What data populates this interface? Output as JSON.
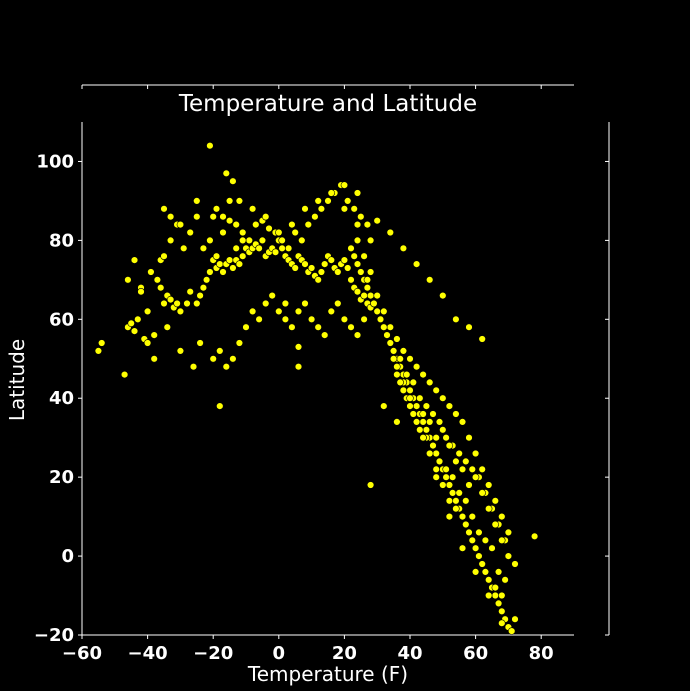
{
  "colors": {
    "background": "#000000",
    "foreground": "#ffffff",
    "point_fill": "#ffff00",
    "point_edge": "#000000"
  },
  "chart_data": {
    "type": "scatter",
    "title": "Temperature and Latitude",
    "xlabel": "Temperature (F)",
    "ylabel": "Latitude",
    "xlim": [
      -60,
      90
    ],
    "ylim": [
      -20,
      110
    ],
    "xticks": [
      -60,
      -40,
      -20,
      0,
      20,
      40,
      60,
      80
    ],
    "yticks": [
      -20,
      0,
      20,
      40,
      60,
      80,
      100
    ],
    "xtick_labels": [
      "−60",
      "−40",
      "−20",
      "0",
      "20",
      "40",
      "60",
      "80"
    ],
    "ytick_labels": [
      "−20",
      "0",
      "20",
      "40",
      "60",
      "80",
      "100"
    ],
    "grid": false,
    "series": [
      {
        "x": [
          -55,
          -54,
          -47,
          -46,
          -45,
          -44,
          -42,
          -41,
          -40,
          -38,
          -37,
          -36,
          -35,
          -34,
          -33,
          -32,
          -31,
          -30,
          -28,
          -27,
          -25,
          -24,
          -23,
          -22,
          -21,
          -20,
          -19,
          -18,
          -17,
          -16,
          -15,
          -14,
          -13,
          -12,
          -11,
          -10,
          -9,
          -8,
          -7,
          -6,
          -5,
          -4,
          -3,
          -2,
          -1,
          0,
          1,
          2,
          3,
          4,
          5,
          6,
          7,
          8,
          9,
          10,
          11,
          12,
          13,
          14,
          15,
          16,
          17,
          18,
          19,
          20,
          21,
          22,
          23,
          24,
          25,
          26,
          27,
          28,
          -46,
          -44,
          -42,
          -39,
          -36,
          -35,
          -33,
          -31,
          -29,
          -27,
          -25,
          -23,
          -21,
          -19,
          -17,
          -15,
          -13,
          -11,
          -9,
          -7,
          -5,
          -3,
          -1,
          1,
          3,
          5,
          7,
          9,
          11,
          13,
          15,
          17,
          19,
          21,
          23,
          25,
          27,
          -43,
          -40,
          -38,
          -34,
          -30,
          -26,
          -24,
          -20,
          -18,
          -16,
          -14,
          -12,
          -10,
          -8,
          -6,
          -4,
          -2,
          0,
          2,
          4,
          6,
          8,
          10,
          12,
          14,
          16,
          18,
          20,
          22,
          24,
          26,
          -21,
          -16,
          -14,
          -19,
          -17,
          -15,
          -13,
          -11,
          -35,
          -33,
          -30,
          -25,
          -20,
          -12,
          -8,
          -4,
          0,
          4,
          8,
          12,
          16,
          20,
          24,
          -18,
          6,
          6,
          2,
          22,
          23,
          24,
          25,
          26,
          27,
          28,
          29,
          30,
          31,
          32,
          33,
          34,
          35,
          36,
          37,
          38,
          39,
          40,
          41,
          42,
          43,
          44,
          45,
          46,
          47,
          48,
          49,
          50,
          51,
          52,
          53,
          54,
          55,
          56,
          57,
          58,
          59,
          60,
          61,
          62,
          63,
          64,
          65,
          66,
          67,
          68,
          69,
          70,
          71,
          24,
          26,
          28,
          30,
          32,
          34,
          36,
          38,
          40,
          42,
          44,
          46,
          48,
          50,
          52,
          54,
          56,
          58,
          60,
          62,
          64,
          66,
          68,
          70,
          27,
          29,
          31,
          33,
          35,
          37,
          39,
          41,
          43,
          45,
          47,
          49,
          51,
          53,
          55,
          57,
          59,
          61,
          63,
          65,
          67,
          69,
          30,
          32,
          34,
          36,
          38,
          40,
          42,
          44,
          46,
          48,
          50,
          52,
          54,
          56,
          58,
          60,
          62,
          64,
          66,
          68,
          70,
          72,
          33,
          35,
          37,
          39,
          41,
          43,
          45,
          47,
          49,
          51,
          53,
          55,
          57,
          59,
          61,
          63,
          65,
          67,
          69,
          36,
          38,
          40,
          42,
          44,
          46,
          48,
          50,
          52,
          54,
          56,
          58,
          60,
          62,
          64,
          66,
          68,
          28,
          32,
          36,
          40,
          44,
          48,
          52,
          56,
          60,
          64,
          68,
          72,
          78,
          20,
          24,
          28,
          30,
          34,
          38,
          42,
          46,
          50,
          54,
          58,
          62
        ],
        "y": [
          52,
          54,
          46,
          58,
          59,
          57,
          68,
          55,
          62,
          50,
          70,
          68,
          64,
          66,
          65,
          63,
          64,
          62,
          64,
          67,
          64,
          66,
          68,
          70,
          72,
          75,
          73,
          74,
          72,
          74,
          75,
          73,
          75,
          74,
          76,
          78,
          77,
          78,
          79,
          78,
          80,
          76,
          77,
          78,
          77,
          80,
          78,
          76,
          75,
          74,
          73,
          76,
          75,
          74,
          72,
          73,
          71,
          70,
          72,
          74,
          76,
          75,
          73,
          72,
          74,
          75,
          73,
          70,
          68,
          67,
          65,
          66,
          64,
          63,
          70,
          75,
          67,
          72,
          75,
          76,
          80,
          84,
          78,
          82,
          86,
          78,
          80,
          76,
          82,
          85,
          78,
          82,
          80,
          84,
          85,
          83,
          82,
          80,
          78,
          82,
          80,
          84,
          86,
          88,
          90,
          92,
          94,
          90,
          88,
          86,
          84,
          60,
          54,
          56,
          58,
          52,
          48,
          54,
          50,
          52,
          48,
          50,
          54,
          58,
          62,
          60,
          64,
          66,
          62,
          60,
          58,
          62,
          64,
          60,
          58,
          56,
          62,
          64,
          60,
          58,
          56,
          60,
          104,
          97,
          95,
          88,
          86,
          90,
          84,
          80,
          88,
          86,
          84,
          90,
          86,
          90,
          88,
          86,
          82,
          84,
          88,
          90,
          92,
          94,
          92,
          38,
          48,
          53,
          64,
          78,
          76,
          74,
          72,
          70,
          68,
          66,
          64,
          62,
          60,
          58,
          56,
          54,
          52,
          50,
          48,
          46,
          44,
          42,
          40,
          38,
          36,
          34,
          32,
          30,
          28,
          26,
          24,
          22,
          20,
          18,
          16,
          14,
          12,
          10,
          8,
          6,
          4,
          2,
          0,
          -2,
          -4,
          -6,
          -8,
          -10,
          -12,
          -14,
          -16,
          -18,
          -19,
          80,
          76,
          72,
          66,
          62,
          58,
          55,
          52,
          50,
          48,
          46,
          44,
          42,
          40,
          38,
          36,
          34,
          30,
          26,
          22,
          18,
          14,
          10,
          6,
          70,
          64,
          60,
          56,
          52,
          50,
          46,
          44,
          40,
          38,
          36,
          34,
          30,
          28,
          26,
          24,
          22,
          20,
          16,
          12,
          8,
          4,
          62,
          58,
          54,
          48,
          44,
          42,
          38,
          36,
          34,
          30,
          32,
          28,
          24,
          22,
          18,
          20,
          16,
          12,
          8,
          4,
          0,
          -2,
          56,
          50,
          44,
          40,
          36,
          32,
          30,
          28,
          24,
          22,
          20,
          16,
          14,
          10,
          6,
          4,
          2,
          -4,
          -6,
          46,
          42,
          38,
          34,
          30,
          26,
          22,
          18,
          14,
          12,
          10,
          6,
          2,
          -2,
          -6,
          -8,
          -10,
          18,
          38,
          34,
          40,
          30,
          20,
          10,
          2,
          -4,
          -10,
          -17,
          -16,
          5,
          88,
          84,
          80,
          85,
          82,
          78,
          74,
          70,
          66,
          60,
          58,
          55
        ]
      }
    ]
  }
}
